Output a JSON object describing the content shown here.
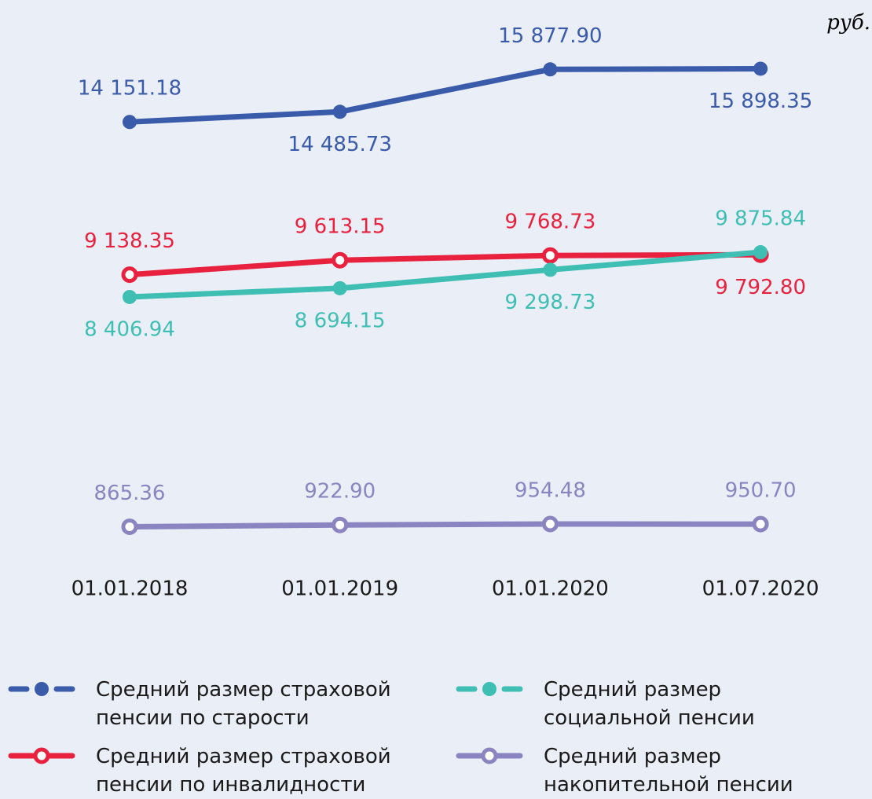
{
  "chart_data": {
    "type": "line",
    "unit_label": "руб.",
    "categories": [
      "01.01.2018",
      "01.01.2019",
      "01.01.2020",
      "01.07.2020"
    ],
    "ylim": [
      0,
      18000
    ],
    "series": [
      {
        "name": "Средний размер страховой пенсии по старости",
        "color": "#3a5ba9",
        "marker": "filled",
        "values": [
          14151.18,
          14485.73,
          15877.9,
          15898.35
        ],
        "value_labels": [
          "14 151.18",
          "14 485.73",
          "15 877.90",
          "15 898.35"
        ]
      },
      {
        "name": "Средний размер страховой пенсии по инвалидности",
        "color": "#e8213f",
        "marker": "hollow",
        "values": [
          9138.35,
          9613.15,
          9768.73,
          9792.8
        ],
        "value_labels": [
          "9 138.35",
          "9 613.15",
          "9 768.73",
          "9 792.80"
        ]
      },
      {
        "name": "Средний размер социальной пенсии",
        "color": "#3fbfb4",
        "marker": "filled",
        "values": [
          8406.94,
          8694.15,
          9298.73,
          9875.84
        ],
        "value_labels": [
          "8 406.94",
          "8 694.15",
          "9 298.73",
          "9 875.84"
        ]
      },
      {
        "name": "Средний размер накопительной пенсии",
        "color": "#8a85c0",
        "marker": "hollow",
        "values": [
          865.36,
          922.9,
          954.48,
          950.7
        ],
        "value_labels": [
          "865.36",
          "922.90",
          "954.48",
          "950.70"
        ]
      }
    ]
  }
}
